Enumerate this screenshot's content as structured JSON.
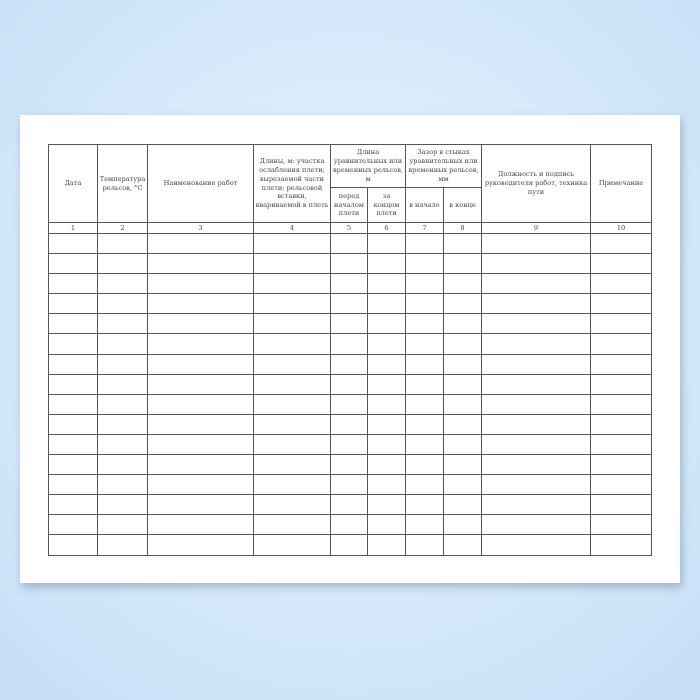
{
  "table": {
    "headers": {
      "date": "Дата",
      "rail_temp": "Температура рельсов, °С",
      "work_name": "Наименование работ",
      "lengths": "Длины, м: участка ослабления плети; вырезаемой части плети; рельсовой вставки, ввариваемой в плеть",
      "equalizing_length": "Длина уравнительных или временных рельсов, м",
      "before_start": "перед началом плети",
      "after_end": "за концом плети",
      "joint_gap": "Зазор в стыках уравнительных или временных рельсов, мм",
      "at_start": "в начале",
      "at_end": "в конце",
      "position_signature": "Должность и подпись руководителя работ, техника пути",
      "note": "Примечание"
    },
    "column_numbers": [
      "1",
      "2",
      "3",
      "4",
      "5",
      "6",
      "7",
      "8",
      "9",
      "10"
    ],
    "empty_row_count": 16
  }
}
